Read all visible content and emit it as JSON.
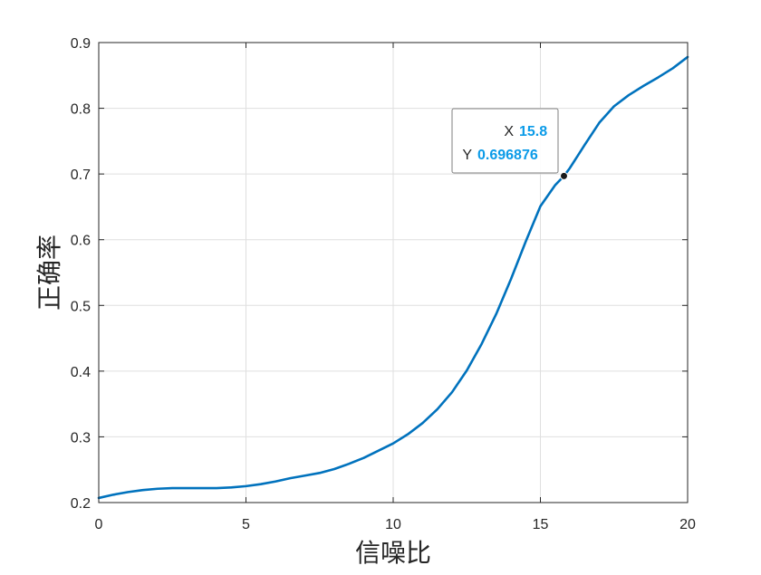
{
  "chart_data": {
    "type": "line",
    "xlabel": "信噪比",
    "ylabel": "正确率",
    "xlim": [
      0,
      20
    ],
    "ylim": [
      0.2,
      0.9
    ],
    "x_ticks": [
      0,
      5,
      10,
      15,
      20
    ],
    "y_ticks": [
      0.2,
      0.3,
      0.4,
      0.5,
      0.6,
      0.7,
      0.8,
      0.9
    ],
    "grid": true,
    "series": [
      {
        "color": "#0072bd",
        "x": [
          0,
          0.5,
          1,
          1.5,
          2,
          2.5,
          3,
          3.5,
          4,
          4.5,
          5,
          5.5,
          6,
          6.5,
          7,
          7.5,
          8,
          8.5,
          9,
          9.5,
          10,
          10.5,
          11,
          11.5,
          12,
          12.5,
          13,
          13.5,
          14,
          14.5,
          15,
          15.5,
          15.8,
          16,
          16.5,
          17,
          17.5,
          18,
          18.5,
          19,
          19.5,
          20
        ],
        "y": [
          0.207,
          0.212,
          0.216,
          0.219,
          0.221,
          0.222,
          0.222,
          0.222,
          0.222,
          0.223,
          0.225,
          0.228,
          0.232,
          0.237,
          0.241,
          0.245,
          0.251,
          0.259,
          0.268,
          0.279,
          0.29,
          0.304,
          0.321,
          0.342,
          0.368,
          0.401,
          0.441,
          0.487,
          0.54,
          0.597,
          0.651,
          0.683,
          0.697,
          0.709,
          0.744,
          0.778,
          0.803,
          0.82,
          0.834,
          0.847,
          0.861,
          0.878
        ]
      }
    ],
    "datatip": {
      "x_key": "X",
      "x_value": "15.8",
      "y_key": "Y",
      "y_value": "0.696876",
      "point": [
        15.8,
        0.696876
      ]
    }
  },
  "colors": {
    "line": "#0072bd",
    "grid": "#dfdfdf",
    "axis": "#262626",
    "datatip_value": "#0b9be8"
  }
}
